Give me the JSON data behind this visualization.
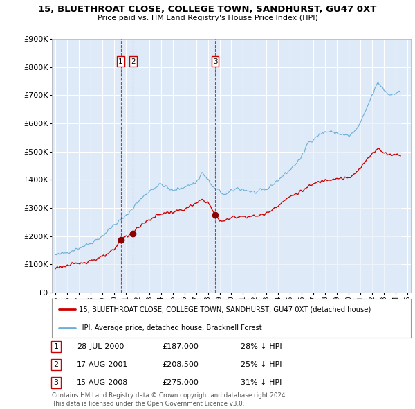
{
  "title": "15, BLUETHROAT CLOSE, COLLEGE TOWN, SANDHURST, GU47 0XT",
  "subtitle": "Price paid vs. HM Land Registry's House Price Index (HPI)",
  "legend_line1": "15, BLUETHROAT CLOSE, COLLEGE TOWN, SANDHURST, GU47 0XT (detached house)",
  "legend_line2": "HPI: Average price, detached house, Bracknell Forest",
  "footer_line1": "Contains HM Land Registry data © Crown copyright and database right 2024.",
  "footer_line2": "This data is licensed under the Open Government Licence v3.0.",
  "transactions": [
    {
      "num": 1,
      "date": "28-JUL-2000",
      "price": "£187,000",
      "pct": "28% ↓ HPI",
      "x": 2000.57,
      "price_val": 187000
    },
    {
      "num": 2,
      "date": "17-AUG-2001",
      "price": "£208,500",
      "pct": "25% ↓ HPI",
      "x": 2001.62,
      "price_val": 208500
    },
    {
      "num": 3,
      "date": "15-AUG-2008",
      "price": "£275,000",
      "pct": "31% ↓ HPI",
      "x": 2008.62,
      "price_val": 275000
    }
  ],
  "hpi_color": "#6baed6",
  "hpi_fill_color": "#deeaf7",
  "price_color": "#cc0000",
  "vline1_color": "#cc0000",
  "vline2_color": "#6baed6",
  "vline3_color": "#cc0000",
  "ylim": [
    0,
    900000
  ],
  "xlim_start": 1994.7,
  "xlim_end": 2025.3,
  "bg_color": "#deeaf7"
}
